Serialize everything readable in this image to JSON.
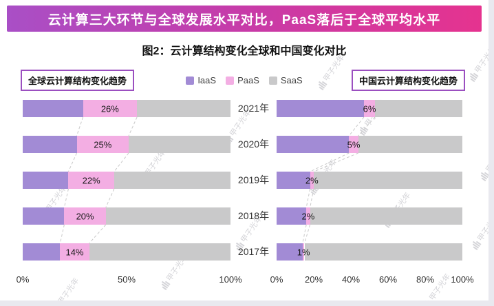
{
  "banner": {
    "text": "云计算三大环节与全球发展水平对比，PaaS落后于全球平均水平"
  },
  "title": "图2：云计算结构变化全球和中国变化对比",
  "left_chart_label": "全球云计算结构变化趋势",
  "right_chart_label": "中国云计算结构变化趋势",
  "legend": [
    {
      "label": "IaaS",
      "color": "#a28bd5"
    },
    {
      "label": "PaaS",
      "color": "#f3aee3"
    },
    {
      "label": "SaaS",
      "color": "#c9c9ca"
    }
  ],
  "years": [
    "2021年",
    "2020年",
    "2019年",
    "2018年",
    "2017年"
  ],
  "watermark": "甲子光年",
  "colors": {
    "banner_gradient": [
      "#a94fc6",
      "#c73ba8",
      "#e5338f"
    ],
    "series": {
      "IaaS": "#a28bd5",
      "PaaS": "#f3aee3",
      "SaaS": "#c9c9ca"
    },
    "dashed_line": "#c9c9c9"
  },
  "chart_data": [
    {
      "type": "bar",
      "orientation": "horizontal",
      "stacked": true,
      "title": "全球云计算结构变化趋势",
      "categories": [
        "2021年",
        "2020年",
        "2019年",
        "2018年",
        "2017年"
      ],
      "series": [
        {
          "name": "IaaS",
          "values": [
            29,
            26,
            22,
            20,
            18
          ]
        },
        {
          "name": "PaaS",
          "values": [
            26,
            25,
            22,
            20,
            14
          ]
        },
        {
          "name": "SaaS",
          "values": [
            45,
            49,
            56,
            60,
            68
          ]
        }
      ],
      "paas_labels": [
        "26%",
        "25%",
        "22%",
        "20%",
        "14%"
      ],
      "xlim": [
        0,
        100
      ],
      "xticks": [
        "0%",
        "50%",
        "100%"
      ],
      "grid": false,
      "legend_position": "top-center"
    },
    {
      "type": "bar",
      "orientation": "horizontal",
      "stacked": true,
      "title": "中国云计算结构变化趋势",
      "categories": [
        "2021年",
        "2020年",
        "2019年",
        "2018年",
        "2017年"
      ],
      "series": [
        {
          "name": "IaaS",
          "values": [
            47,
            39,
            18,
            16,
            14
          ]
        },
        {
          "name": "PaaS",
          "values": [
            6,
            5,
            2,
            2,
            1
          ]
        },
        {
          "name": "SaaS",
          "values": [
            47,
            56,
            80,
            82,
            85
          ]
        }
      ],
      "paas_labels": [
        "6%",
        "5%",
        "2%",
        "2%",
        "1%"
      ],
      "xlim": [
        0,
        100
      ],
      "xticks": [
        "0%",
        "20%",
        "40%",
        "60%",
        "80%",
        "100%"
      ],
      "grid": false,
      "legend_position": "top-center"
    }
  ]
}
